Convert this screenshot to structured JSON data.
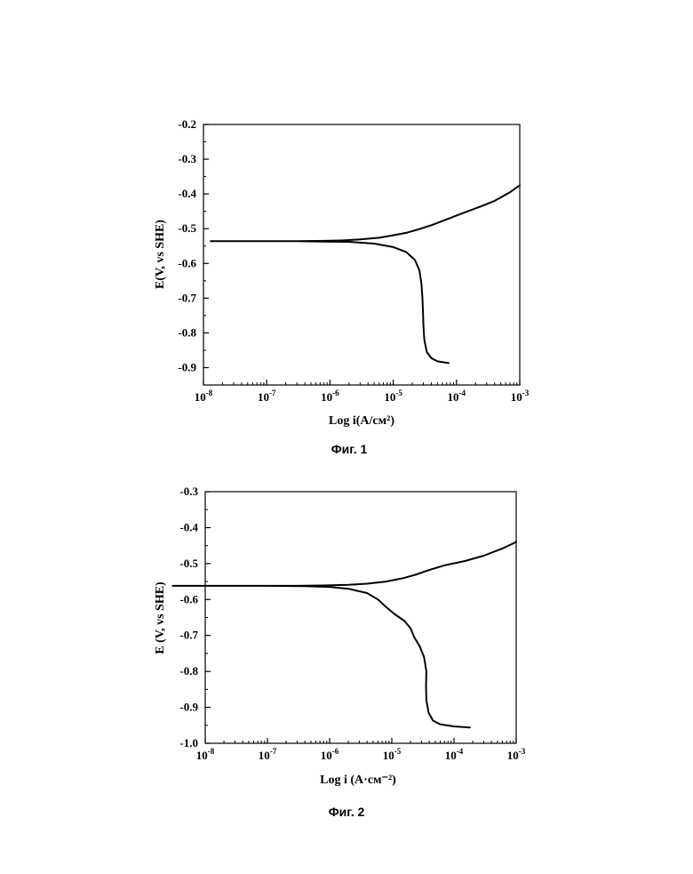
{
  "chart_data": [
    {
      "type": "line",
      "caption": "Фиг. 1",
      "xlabel": "Log i(A/см²)",
      "ylabel": "E(V, vs SHE)",
      "x_scale": "log",
      "xlim": [
        1e-08,
        0.001
      ],
      "ylim": [
        -0.95,
        -0.2
      ],
      "x_ticks": [
        1e-08,
        1e-07,
        1e-06,
        1e-05,
        0.0001,
        0.001
      ],
      "x_tick_labels": [
        {
          "base": "10",
          "exp": "-8"
        },
        {
          "base": "10",
          "exp": "-7"
        },
        {
          "base": "10",
          "exp": "-6"
        },
        {
          "base": "10",
          "exp": "-5"
        },
        {
          "base": "10",
          "exp": "-4"
        },
        {
          "base": "10",
          "exp": "-3"
        }
      ],
      "y_ticks": [
        -0.2,
        -0.3,
        -0.4,
        -0.5,
        -0.6,
        -0.7,
        -0.8,
        -0.9
      ],
      "y_tick_labels": [
        "-0.2",
        "-0.3",
        "-0.4",
        "-0.5",
        "-0.6",
        "-0.7",
        "-0.8",
        "-0.9"
      ],
      "grid": false,
      "series": [
        {
          "points": [
            [
              0.001,
              -0.375
            ],
            [
              0.0007,
              -0.395
            ],
            [
              0.0004,
              -0.42
            ],
            [
              0.00025,
              -0.435
            ],
            [
              0.00015,
              -0.45
            ],
            [
              0.0001,
              -0.462
            ],
            [
              6e-05,
              -0.478
            ],
            [
              4e-05,
              -0.49
            ],
            [
              2.5e-05,
              -0.502
            ],
            [
              1.6e-05,
              -0.512
            ],
            [
              1e-05,
              -0.519
            ],
            [
              6e-06,
              -0.526
            ],
            [
              3e-06,
              -0.531
            ],
            [
              1.5e-06,
              -0.534
            ],
            [
              8e-07,
              -0.535
            ],
            [
              3e-07,
              -0.536
            ],
            [
              1e-07,
              -0.536
            ],
            [
              3e-08,
              -0.536
            ],
            [
              1.3e-08,
              -0.536
            ],
            [
              3e-08,
              -0.536
            ],
            [
              1e-07,
              -0.536
            ],
            [
              3e-07,
              -0.536
            ],
            [
              8e-07,
              -0.537
            ],
            [
              2e-06,
              -0.538
            ],
            [
              5e-06,
              -0.543
            ],
            [
              1e-05,
              -0.553
            ],
            [
              1.6e-05,
              -0.567
            ],
            [
              2.2e-05,
              -0.59
            ],
            [
              2.6e-05,
              -0.62
            ],
            [
              2.8e-05,
              -0.66
            ],
            [
              2.9e-05,
              -0.7
            ],
            [
              2.95e-05,
              -0.74
            ],
            [
              3e-05,
              -0.78
            ],
            [
              3.1e-05,
              -0.82
            ],
            [
              3.4e-05,
              -0.855
            ],
            [
              4e-05,
              -0.873
            ],
            [
              5e-05,
              -0.882
            ],
            [
              7.5e-05,
              -0.887
            ]
          ]
        }
      ]
    },
    {
      "type": "line",
      "caption": "Фиг. 2",
      "xlabel": "Log i (A·см⁻²)",
      "ylabel": "E (V, vs SHE)",
      "x_scale": "log",
      "xlim": [
        1e-08,
        0.001
      ],
      "ylim": [
        -1.0,
        -0.3
      ],
      "x_ticks": [
        1e-08,
        1e-07,
        1e-06,
        1e-05,
        0.0001,
        0.001
      ],
      "x_tick_labels": [
        {
          "base": "10",
          "exp": "-8"
        },
        {
          "base": "10",
          "exp": "-7"
        },
        {
          "base": "10",
          "exp": "-6"
        },
        {
          "base": "10",
          "exp": "-5"
        },
        {
          "base": "10",
          "exp": "-4"
        },
        {
          "base": "10",
          "exp": "-3"
        }
      ],
      "y_ticks": [
        -0.3,
        -0.4,
        -0.5,
        -0.6,
        -0.7,
        -0.8,
        -0.9,
        -1.0
      ],
      "y_tick_labels": [
        "-0.3",
        "-0.4",
        "-0.5",
        "-0.6",
        "-0.7",
        "-0.8",
        "-0.9",
        "-1.0"
      ],
      "grid": false,
      "series": [
        {
          "points": [
            [
              0.001,
              -0.44
            ],
            [
              0.0006,
              -0.458
            ],
            [
              0.0003,
              -0.478
            ],
            [
              0.00015,
              -0.493
            ],
            [
              7e-05,
              -0.505
            ],
            [
              4e-05,
              -0.518
            ],
            [
              2.5e-05,
              -0.53
            ],
            [
              1.5e-05,
              -0.541
            ],
            [
              8e-06,
              -0.55
            ],
            [
              4e-06,
              -0.556
            ],
            [
              2e-06,
              -0.559
            ],
            [
              8e-07,
              -0.561
            ],
            [
              3e-07,
              -0.562
            ],
            [
              1e-07,
              -0.562
            ],
            [
              3e-08,
              -0.562
            ],
            [
              3e-09,
              -0.562
            ],
            [
              3e-08,
              -0.562
            ],
            [
              1e-07,
              -0.562
            ],
            [
              4e-07,
              -0.563
            ],
            [
              1e-06,
              -0.565
            ],
            [
              2e-06,
              -0.57
            ],
            [
              4e-06,
              -0.582
            ],
            [
              6e-06,
              -0.6
            ],
            [
              8e-06,
              -0.62
            ],
            [
              1.1e-05,
              -0.64
            ],
            [
              1.6e-05,
              -0.66
            ],
            [
              2e-05,
              -0.68
            ],
            [
              2.3e-05,
              -0.705
            ],
            [
              2.8e-05,
              -0.73
            ],
            [
              3.3e-05,
              -0.76
            ],
            [
              3.6e-05,
              -0.8
            ],
            [
              3.55e-05,
              -0.84
            ],
            [
              3.6e-05,
              -0.88
            ],
            [
              3.9e-05,
              -0.915
            ],
            [
              4.6e-05,
              -0.937
            ],
            [
              6e-05,
              -0.947
            ],
            [
              0.0001,
              -0.953
            ],
            [
              0.00018,
              -0.956
            ]
          ]
        }
      ]
    }
  ]
}
